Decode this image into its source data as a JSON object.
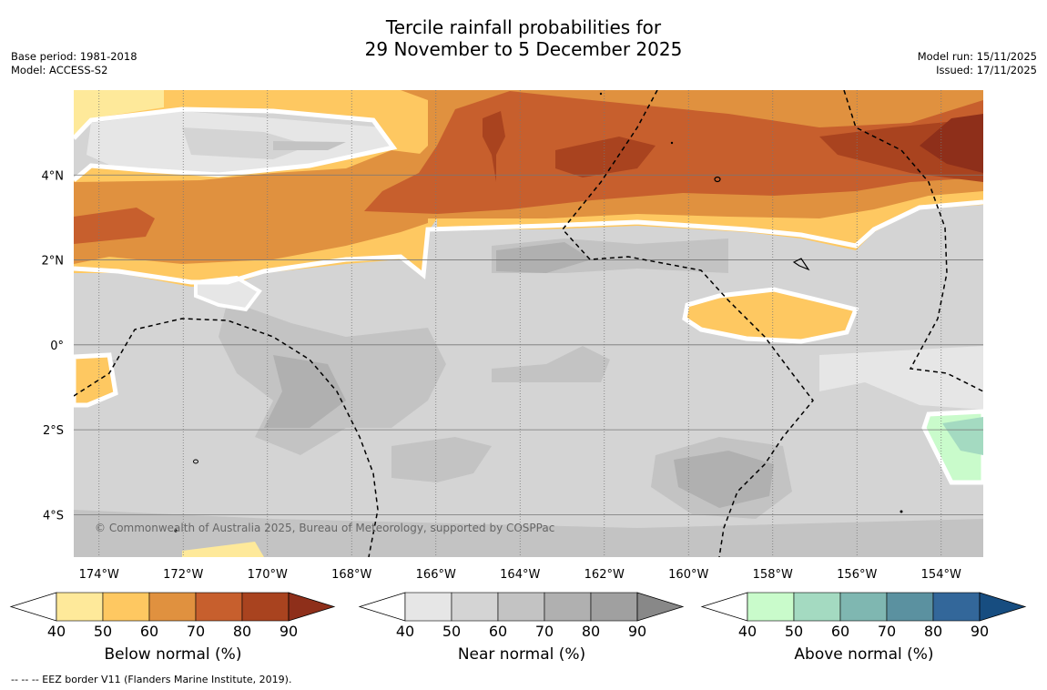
{
  "header": {
    "title": "Tercile rainfall probabilities for\n29 November to 5 December 2025",
    "base_period": "Base period: 1981-2018",
    "model": "Model: ACCESS-S2",
    "model_run": "Model run: 15/11/2025",
    "issued": "Issued: 17/11/2025"
  },
  "map": {
    "lon_labels": [
      "174°W",
      "172°W",
      "170°W",
      "168°W",
      "166°W",
      "164°W",
      "162°W",
      "160°W",
      "158°W",
      "156°W",
      "154°W"
    ],
    "lon_values": [
      -174,
      -172,
      -170,
      -168,
      -166,
      -164,
      -162,
      -160,
      -158,
      -156,
      -154
    ],
    "lat_labels": [
      "4°N",
      "2°N",
      "0°",
      "2°S",
      "4°S"
    ],
    "lat_values": [
      4,
      2,
      0,
      -2,
      -4
    ],
    "extent": {
      "lon_min": -174.6,
      "lon_max": -153.0,
      "lat_min": -5.0,
      "lat_max": 6.0
    },
    "copyright": "© Commonwealth of Australia 2025, Bureau of Meteorology, supported by COSPPac",
    "colors": {
      "below": [
        "#fee99a",
        "#fec861",
        "#e0913f",
        "#c75f2d",
        "#a9431f",
        "#8e2f1a"
      ],
      "near": [
        "#e6e6e6",
        "#d4d4d4",
        "#c3c3c3",
        "#b0b0b0",
        "#a0a0a0",
        "#888888"
      ],
      "above": [
        "#c9fbcb",
        "#a4dac1",
        "#7fb7b1",
        "#5b91a0",
        "#33679a",
        "#174d80"
      ],
      "grid": "#777777"
    }
  },
  "colorbars": [
    {
      "label": "Below normal (%)",
      "ticks": [
        "40",
        "50",
        "60",
        "70",
        "80",
        "90"
      ]
    },
    {
      "label": "Near normal (%)",
      "ticks": [
        "40",
        "50",
        "60",
        "70",
        "80",
        "90"
      ]
    },
    {
      "label": "Above normal (%)",
      "ticks": [
        "40",
        "50",
        "60",
        "70",
        "80",
        "90"
      ]
    }
  ],
  "footnote": "--  --  -- EEZ border V11 (Flanders Marine Institute, 2019)."
}
